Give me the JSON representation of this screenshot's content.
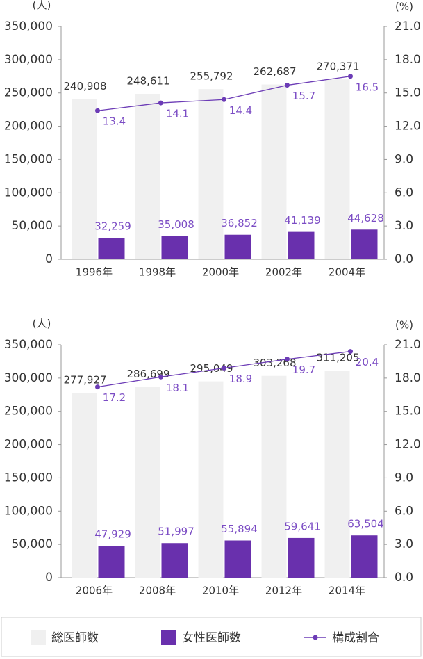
{
  "chart_data": [
    {
      "type": "bar-line",
      "y_label": "(人)",
      "y2_label": "(%)",
      "categories": [
        "1996年",
        "1998年",
        "2000年",
        "2002年",
        "2004年"
      ],
      "series": [
        {
          "name": "総医師数",
          "color": "#f0f0f0",
          "values": [
            240908,
            248611,
            255792,
            262687,
            270371
          ],
          "value_labels": [
            "240,908",
            "248,611",
            "255,792",
            "262,687",
            "270,371"
          ]
        },
        {
          "name": "女性医師数",
          "color": "#6930ad",
          "values": [
            32259,
            35008,
            36852,
            41139,
            44628
          ],
          "value_labels": [
            "32,259",
            "35,008",
            "36,852",
            "41,139",
            "44,628"
          ]
        },
        {
          "name": "構成割合",
          "color": "#6c3cb6",
          "axis": "y2",
          "values": [
            13.4,
            14.1,
            14.4,
            15.7,
            16.5
          ]
        }
      ],
      "ylim": [
        0,
        350000
      ],
      "yticks": [
        0,
        {
          "value": 50000,
          "label": "50,000"
        },
        {
          "value": 100000,
          "label": "100,000"
        },
        {
          "value": 150000,
          "label": "150,000"
        },
        {
          "value": 200000,
          "label": "200,000"
        },
        {
          "value": 250000,
          "label": "250,000"
        },
        {
          "value": 300000,
          "label": "300,000"
        },
        {
          "value": 350000,
          "label": "350,000"
        }
      ],
      "y2lim": [
        0,
        21
      ],
      "y2ticks": [
        {
          "value": 0,
          "label": "0.0"
        },
        {
          "value": 3,
          "label": "3.0"
        },
        {
          "value": 6,
          "label": "6.0"
        },
        {
          "value": 9,
          "label": "9.0"
        },
        {
          "value": 12,
          "label": "12.0"
        },
        {
          "value": 15,
          "label": "15.0"
        },
        {
          "value": 18,
          "label": "18.0"
        },
        {
          "value": 21,
          "label": "21.0"
        }
      ]
    },
    {
      "type": "bar-line",
      "y_label": "(人)",
      "y2_label": "(%)",
      "categories": [
        "2006年",
        "2008年",
        "2010年",
        "2012年",
        "2014年"
      ],
      "series": [
        {
          "color": "#f0f0f0",
          "values": [
            277927,
            286699,
            295049,
            303268,
            311205
          ],
          "value_labels": [
            "277,927",
            "286,699",
            "295,049",
            "303,268",
            "311,205"
          ]
        },
        {
          "color": "#6930ad",
          "values": [
            47929,
            51997,
            55894,
            59641,
            63504
          ],
          "value_labels": [
            "47,929",
            "51,997",
            "55,894",
            "59,641",
            "63,504"
          ]
        },
        {
          "color": "#6c3cb6",
          "axis": "y2",
          "values": [
            17.2,
            18.1,
            18.9,
            19.7,
            20.4
          ]
        }
      ],
      "ylim": [
        0,
        350000
      ],
      "yticks": [
        0,
        {
          "value": 50000,
          "label": "50,000"
        },
        {
          "value": 100000,
          "label": "100,000"
        },
        {
          "value": 150000,
          "label": "150,000"
        },
        {
          "value": 200000,
          "label": "200,000"
        },
        {
          "value": 250000,
          "label": "250,000"
        },
        {
          "value": 300000,
          "label": "300,000"
        },
        {
          "value": 350000,
          "label": "350,000"
        }
      ],
      "y2lim": [
        0,
        21
      ],
      "y2ticks": [
        {
          "value": 0,
          "label": "0.0"
        },
        {
          "value": 3,
          "label": "3.0"
        },
        {
          "value": 6,
          "label": "6.0"
        },
        {
          "value": 9,
          "label": "9.0"
        },
        {
          "value": 12,
          "label": "12.0"
        },
        {
          "value": 15,
          "label": "15.0"
        },
        {
          "value": 18,
          "label": "18.0"
        },
        {
          "value": 21,
          "label": "21.0"
        }
      ]
    }
  ]
}
